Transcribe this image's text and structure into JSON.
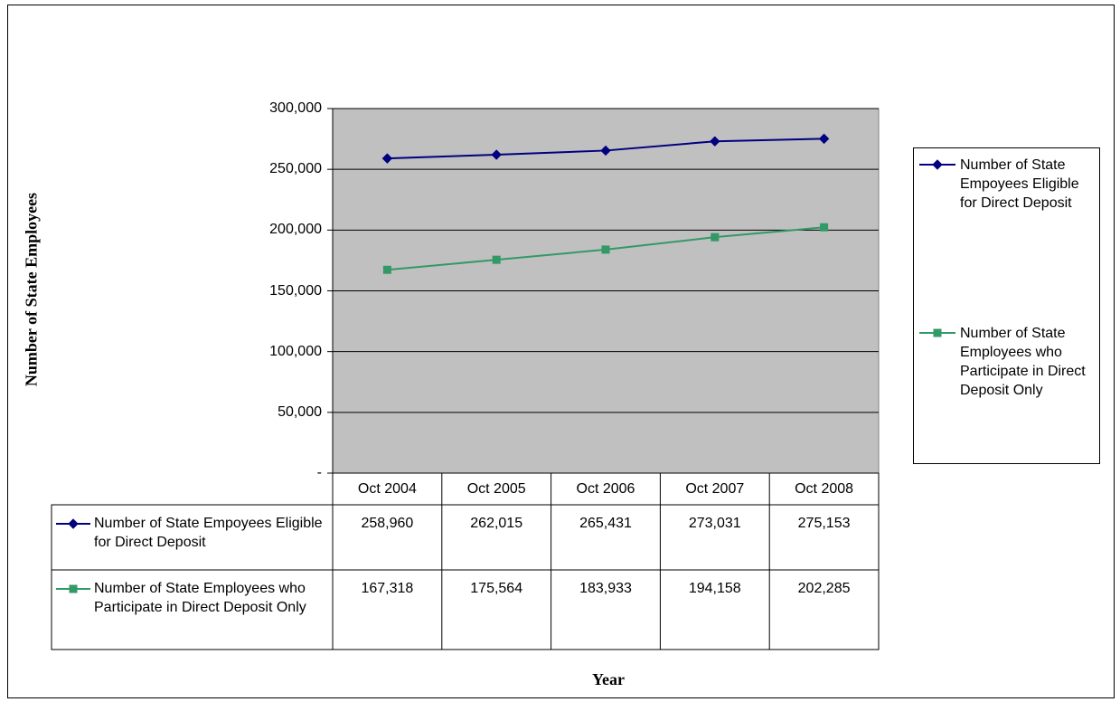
{
  "chart_data": {
    "type": "line",
    "y_label": "Number of State Employees",
    "x_label": "Year",
    "categories": [
      "Oct 2004",
      "Oct 2005",
      "Oct 2006",
      "Oct 2007",
      "Oct 2008"
    ],
    "series": [
      {
        "name": "Number of State Empoyees Eligible for Direct Deposit",
        "color": "#000080",
        "marker": "diamond",
        "values": [
          258960,
          262015,
          265431,
          273031,
          275153
        ],
        "value_labels": [
          "258,960",
          "262,015",
          "265,431",
          "273,031",
          "275,153"
        ]
      },
      {
        "name": "Number of State Employees who Participate in Direct Deposit Only",
        "color": "#339966",
        "marker": "square",
        "values": [
          167318,
          175564,
          183933,
          194158,
          202285
        ],
        "value_labels": [
          "167,318",
          "175,564",
          "183,933",
          "194,158",
          "202,285"
        ]
      }
    ],
    "ylim": [
      0,
      300000
    ],
    "yticks": [
      {
        "value": 0,
        "label": "-"
      },
      {
        "value": 50000,
        "label": "50,000"
      },
      {
        "value": 100000,
        "label": "100,000"
      },
      {
        "value": 150000,
        "label": "150,000"
      },
      {
        "value": 200000,
        "label": "200,000"
      },
      {
        "value": 250000,
        "label": "250,000"
      },
      {
        "value": 300000,
        "label": "300,000"
      }
    ],
    "grid": true,
    "plot_background": "#c0c0c0",
    "legend": "right"
  }
}
